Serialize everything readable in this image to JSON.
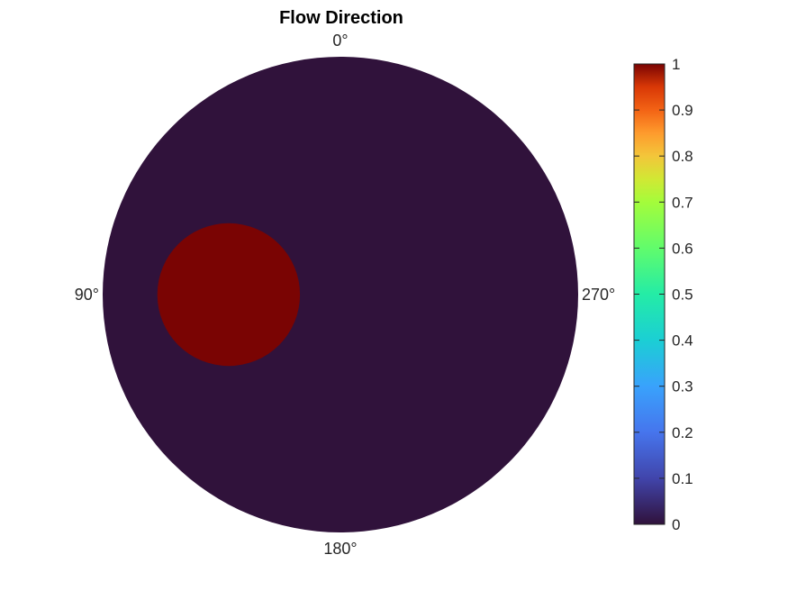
{
  "chart_data": {
    "type": "heatmap",
    "title": "Flow Direction",
    "projection": "polar",
    "angle_labels": [
      {
        "label": "0°",
        "angle_deg": 0
      },
      {
        "label": "90°",
        "angle_deg": 90
      },
      {
        "label": "180°",
        "angle_deg": 180
      },
      {
        "label": "270°",
        "angle_deg": 270
      }
    ],
    "angular_direction": "counterclockwise",
    "zero_position": "top",
    "background_value": 0,
    "regions": [
      {
        "name": "",
        "value": 1,
        "center_r": 0.47,
        "center_angle_deg": 90,
        "radius": 0.3
      }
    ],
    "colorbar": {
      "colormap": "turbo",
      "clim": [
        0,
        1
      ],
      "ticks": [
        "0",
        "0.1",
        "0.2",
        "0.3",
        "0.4",
        "0.5",
        "0.6",
        "0.7",
        "0.8",
        "0.9",
        "1"
      ],
      "placement": "right"
    },
    "colors": {
      "low": "#30123b",
      "high": "#7a0403"
    },
    "grid": false
  }
}
